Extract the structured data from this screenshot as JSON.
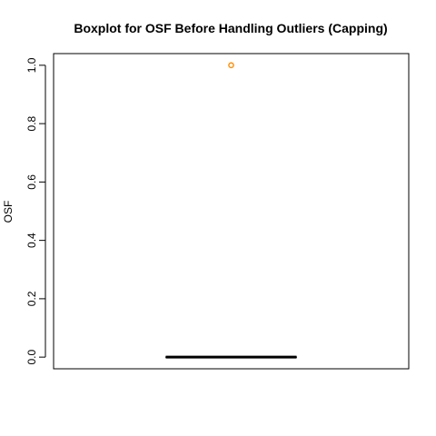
{
  "chart_data": {
    "type": "boxplot",
    "title": "Boxplot for OSF Before Handling Outliers (Capping)",
    "xlabel": "",
    "ylabel": "OSF",
    "ylim": [
      -0.04,
      1.04
    ],
    "y_ticks": [
      0.0,
      0.2,
      0.4,
      0.6,
      0.8,
      1.0
    ],
    "y_tick_labels": [
      "0.0",
      "0.2",
      "0.4",
      "0.6",
      "0.8",
      "1.0"
    ],
    "grid": false,
    "box": {
      "min": 0.0,
      "q1": 0.0,
      "median": 0.0,
      "q3": 0.0,
      "max": 0.0
    },
    "outliers": [
      1.0
    ],
    "colors": {
      "box": "#000000",
      "median": "#000000",
      "outlier": "#ff8c00"
    }
  }
}
